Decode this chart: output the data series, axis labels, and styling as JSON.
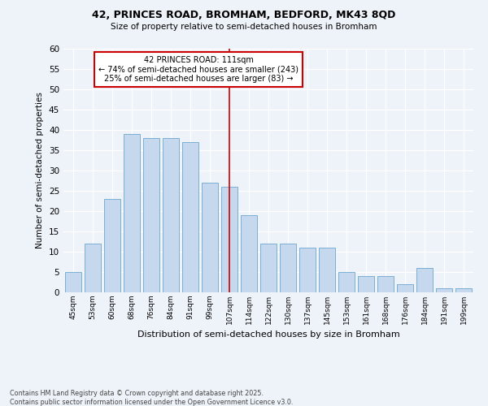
{
  "title1": "42, PRINCES ROAD, BROMHAM, BEDFORD, MK43 8QD",
  "title2": "Size of property relative to semi-detached houses in Bromham",
  "xlabel": "Distribution of semi-detached houses by size in Bromham",
  "ylabel": "Number of semi-detached properties",
  "footnote": "Contains HM Land Registry data © Crown copyright and database right 2025.\nContains public sector information licensed under the Open Government Licence v3.0.",
  "bar_labels": [
    "45sqm",
    "53sqm",
    "60sqm",
    "68sqm",
    "76sqm",
    "84sqm",
    "91sqm",
    "99sqm",
    "107sqm",
    "114sqm",
    "122sqm",
    "130sqm",
    "137sqm",
    "145sqm",
    "153sqm",
    "161sqm",
    "168sqm",
    "176sqm",
    "184sqm",
    "191sqm",
    "199sqm"
  ],
  "bar_values": [
    5,
    12,
    23,
    39,
    38,
    38,
    37,
    27,
    26,
    19,
    12,
    12,
    11,
    11,
    5,
    4,
    4,
    2,
    6,
    1,
    1
  ],
  "bar_color": "#c5d8ed",
  "bar_edge_color": "#7bafd4",
  "background_color": "#eef2f9",
  "grid_color": "#ffffff",
  "vline_x_index": 8,
  "vline_color": "#cc0000",
  "annotation_title": "42 PRINCES ROAD: 111sqm",
  "annotation_line1": "← 74% of semi-detached houses are smaller (243)",
  "annotation_line2": "25% of semi-detached houses are larger (83) →",
  "annotation_box_color": "#cc0000",
  "ylim": [
    0,
    60
  ],
  "yticks": [
    0,
    5,
    10,
    15,
    20,
    25,
    30,
    35,
    40,
    45,
    50,
    55,
    60
  ]
}
